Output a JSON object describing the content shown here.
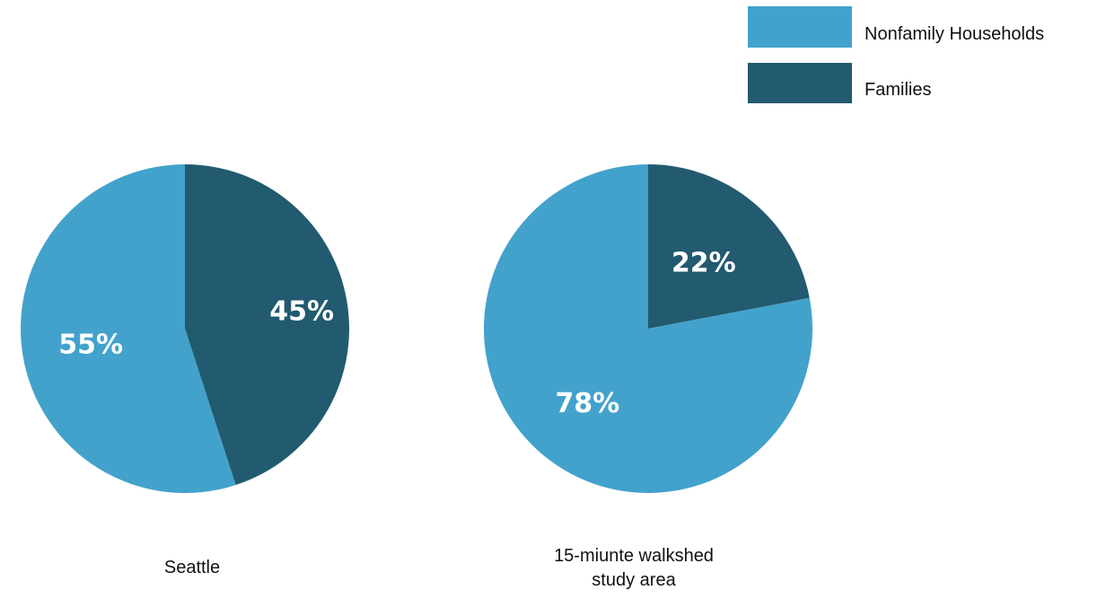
{
  "colors": {
    "nonfamily": "#42A2CB",
    "families": "#225A70"
  },
  "legend": [
    {
      "label": "Nonfamily Households",
      "series": "nonfamily"
    },
    {
      "label": "Families",
      "series": "families"
    }
  ],
  "chart_data": [
    {
      "type": "pie",
      "caption": [
        "Seattle"
      ],
      "slices": [
        {
          "series": "families",
          "value": 45,
          "label": "45%"
        },
        {
          "series": "nonfamily",
          "value": 55,
          "label": "55%"
        }
      ]
    },
    {
      "type": "pie",
      "caption": [
        "15-miunte walkshed",
        "study area"
      ],
      "slices": [
        {
          "series": "families",
          "value": 22,
          "label": "22%"
        },
        {
          "series": "nonfamily",
          "value": 78,
          "label": "78%"
        }
      ]
    }
  ]
}
